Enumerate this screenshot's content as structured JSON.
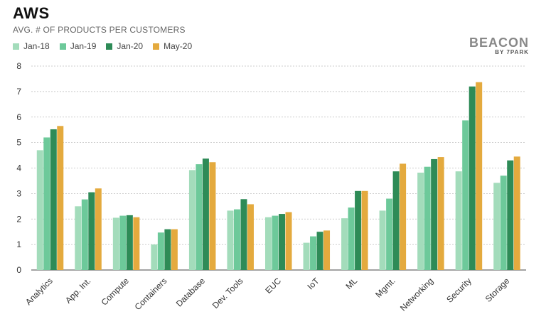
{
  "header": {
    "title": "AWS",
    "subtitle": "AVG. # OF PRODUCTS PER CUSTOMERS"
  },
  "logo": {
    "main": "BEACON",
    "sub": "BY 7PARK"
  },
  "chart_data": {
    "type": "bar",
    "title": "AWS",
    "subtitle": "AVG. # OF PRODUCTS PER CUSTOMERS",
    "categories": [
      "Analytics",
      "App. Int.",
      "Compute",
      "Containers",
      "Database",
      "Dev. Tools",
      "EUC",
      "IoT",
      "ML",
      "Mgmt.",
      "Networking",
      "Security",
      "Storage"
    ],
    "series": [
      {
        "name": "Jan-18",
        "color": "#a3dcbb",
        "values": [
          4.7,
          2.5,
          2.05,
          1.0,
          3.92,
          2.33,
          2.07,
          1.07,
          2.03,
          2.33,
          3.82,
          3.87,
          3.42
        ]
      },
      {
        "name": "Jan-19",
        "color": "#6dc99a",
        "values": [
          5.2,
          2.77,
          2.13,
          1.47,
          4.15,
          2.38,
          2.13,
          1.32,
          2.45,
          2.8,
          4.05,
          5.87,
          3.7
        ]
      },
      {
        "name": "Jan-20",
        "color": "#2e8b57",
        "values": [
          5.52,
          3.05,
          2.15,
          1.6,
          4.37,
          2.78,
          2.2,
          1.5,
          3.1,
          3.87,
          4.35,
          7.2,
          4.3
        ]
      },
      {
        "name": "May-20",
        "color": "#e4aa3e",
        "values": [
          5.65,
          3.2,
          2.07,
          1.6,
          4.23,
          2.58,
          2.27,
          1.55,
          3.1,
          4.17,
          4.43,
          7.37,
          4.45
        ]
      }
    ],
    "ylim": [
      0,
      8
    ],
    "yticks": [
      "0",
      "1",
      "2",
      "3",
      "4",
      "5",
      "6",
      "7",
      "8"
    ],
    "grid": true,
    "legend_position": "top-left"
  }
}
